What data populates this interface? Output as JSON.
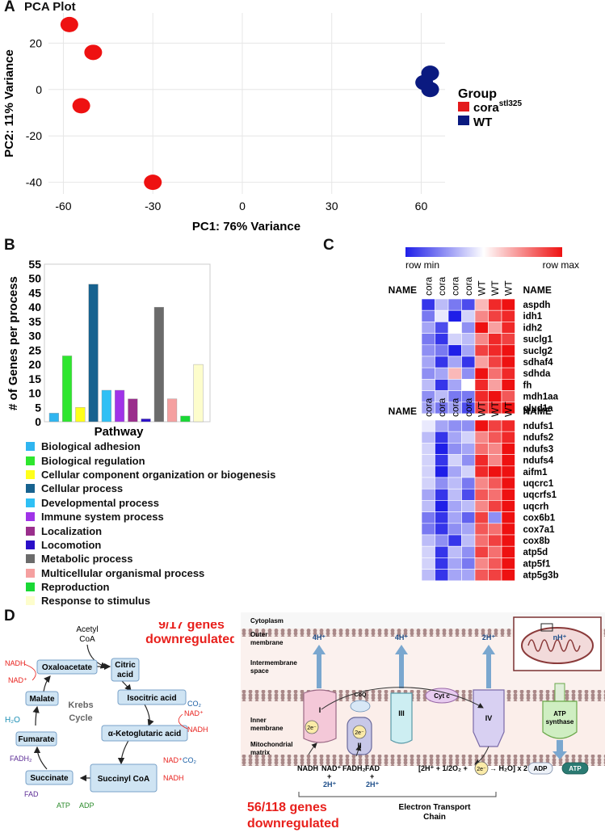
{
  "panels": {
    "a": {
      "label": "A",
      "title": "PCA Plot"
    },
    "b": {
      "label": "B"
    },
    "c": {
      "label": "C"
    },
    "d": {
      "label": "D"
    }
  },
  "chart_data": [
    {
      "type": "scatter",
      "title": "PCA Plot",
      "xlabel": "PC1: 76% Variance",
      "ylabel": "PC2: 11% Variance",
      "xlim": [
        -65,
        68
      ],
      "ylim": [
        -45,
        33
      ],
      "xticks": [
        "-60",
        "-30",
        "0",
        "30",
        "60"
      ],
      "yticks": [
        "20",
        "0",
        "-20",
        "-40"
      ],
      "grid": true,
      "legend": {
        "title": "Group",
        "position": "right",
        "entries": [
          {
            "label": "cora",
            "superscript": "stl325",
            "color": "#e31a1c"
          },
          {
            "label": "WT",
            "color": "#0a1a80"
          }
        ]
      },
      "series": [
        {
          "name": "cora",
          "color": "#ee1111",
          "points": [
            [
              -58,
              28
            ],
            [
              -50,
              16
            ],
            [
              -54,
              -7
            ],
            [
              -30,
              -40
            ]
          ]
        },
        {
          "name": "WT",
          "color": "#0a1a80",
          "points": [
            [
              63,
              7
            ],
            [
              61,
              3
            ],
            [
              63,
              0
            ]
          ]
        }
      ]
    },
    {
      "type": "bar",
      "xlabel": "Pathway",
      "ylabel": "# of Genes per process",
      "ylim": [
        0,
        55
      ],
      "yticks": [
        "0",
        "5",
        "10",
        "15",
        "20",
        "25",
        "30",
        "35",
        "40",
        "45",
        "50",
        "55"
      ],
      "categories": [
        "Biological adhesion",
        "Biological regulation",
        "Cellular component organization or biogenesis",
        "Cellular process",
        "Developmental process",
        "Immune system process",
        "Localization",
        "Locomotion",
        "Metabolic process",
        "Multicellular organismal process",
        "Reproduction",
        "Response to stimulus"
      ],
      "values": [
        3,
        23,
        5,
        48,
        11,
        11,
        8,
        1,
        40,
        8,
        2,
        20
      ],
      "colors": [
        "#2fb5f0",
        "#2ee62e",
        "#ffff1a",
        "#17628f",
        "#2fc0f5",
        "#a033e8",
        "#9a2e8c",
        "#2a0fc8",
        "#6b6b6b",
        "#f5a0a0",
        "#19d835",
        "#fdfdcc"
      ]
    },
    {
      "type": "heatmap",
      "scale": {
        "min_label": "row min",
        "max_label": "row max"
      },
      "blocks": [
        {
          "name_left": "NAME",
          "name_right": "NAME",
          "columns": [
            "cora",
            "cora",
            "cora",
            "cora",
            "WT",
            "WT",
            "WT"
          ],
          "rows": [
            "aspdh",
            "idh1",
            "idh2",
            "suclg1",
            "suclg2",
            "sdhaf4",
            "sdhda",
            "fh",
            "mdh1aa",
            "glud1a"
          ],
          "values": [
            [
              -0.9,
              -0.3,
              -0.6,
              -0.8,
              0.3,
              0.9,
              1.0
            ],
            [
              -0.6,
              -0.1,
              -1.0,
              -0.2,
              0.5,
              0.8,
              0.9
            ],
            [
              -0.4,
              -0.8,
              0.0,
              -0.5,
              1.0,
              0.4,
              0.9
            ],
            [
              -0.6,
              -0.9,
              -0.2,
              -0.3,
              0.5,
              0.9,
              0.8
            ],
            [
              -0.5,
              -0.6,
              -1.0,
              -0.4,
              0.8,
              0.9,
              1.0
            ],
            [
              -0.4,
              -0.9,
              -0.4,
              -0.9,
              0.4,
              0.8,
              1.0
            ],
            [
              -0.5,
              -0.4,
              0.3,
              -0.5,
              1.0,
              0.6,
              0.9
            ],
            [
              -0.3,
              -0.9,
              -0.4,
              0.0,
              0.9,
              0.4,
              1.0
            ],
            [
              -0.5,
              -0.3,
              -0.6,
              -0.6,
              0.9,
              1.0,
              0.7
            ],
            [
              -0.4,
              -0.6,
              -0.4,
              -0.8,
              0.8,
              0.9,
              1.0
            ]
          ]
        },
        {
          "name_left": "NAME",
          "name_right": "NAME",
          "columns": [
            "cora",
            "cora",
            "cora",
            "cora",
            "WT",
            "WT",
            "WT"
          ],
          "rows": [
            "ndufs1",
            "ndufs2",
            "ndufs3",
            "ndufs4",
            "aifm1",
            "uqcrc1",
            "uqcrfs1",
            "uqcrh",
            "cox6b1",
            "cox7a1",
            "cox8b",
            "atp5d",
            "atp5f1",
            "atp5g3b"
          ],
          "values": [
            [
              -0.1,
              -0.4,
              -0.5,
              -0.5,
              1.0,
              0.8,
              0.9
            ],
            [
              -0.3,
              -0.9,
              -0.4,
              -0.2,
              0.5,
              0.7,
              0.9
            ],
            [
              -0.2,
              -1.0,
              -0.5,
              -0.4,
              0.6,
              0.5,
              1.0
            ],
            [
              -0.2,
              -0.9,
              -0.2,
              -0.5,
              0.9,
              0.5,
              1.0
            ],
            [
              -0.2,
              -1.0,
              -0.4,
              -0.2,
              0.9,
              1.0,
              1.0
            ],
            [
              -0.2,
              -0.5,
              -0.3,
              -0.6,
              0.5,
              0.7,
              1.0
            ],
            [
              -0.4,
              -0.9,
              -0.3,
              -0.8,
              0.7,
              0.6,
              1.0
            ],
            [
              -0.3,
              -1.0,
              -0.4,
              -0.3,
              0.5,
              0.8,
              1.0
            ],
            [
              -0.6,
              -0.9,
              -0.4,
              -0.7,
              0.8,
              -0.5,
              1.0
            ],
            [
              -0.6,
              -0.9,
              -0.5,
              -0.4,
              0.7,
              0.6,
              1.0
            ],
            [
              -0.3,
              -0.5,
              -0.9,
              -0.3,
              0.6,
              0.8,
              1.0
            ],
            [
              -0.2,
              -0.9,
              -0.3,
              -0.5,
              0.8,
              0.6,
              1.0
            ],
            [
              -0.2,
              -0.9,
              -0.4,
              -0.6,
              0.5,
              0.7,
              1.0
            ],
            [
              -0.3,
              -0.9,
              -0.4,
              -0.4,
              0.7,
              0.8,
              1.0
            ]
          ]
        }
      ]
    }
  ],
  "krebs": {
    "summary": "9/17 genes downregulated",
    "summary_line1": "9/17 genes",
    "summary_line2": "downregulated",
    "cycle_label_1": "Krebs",
    "cycle_label_2": "Cycle",
    "nodes": {
      "acetyl": "Acetyl CoA",
      "acetyl_1": "Acetyl",
      "acetyl_2": "CoA",
      "oxaloacetate": "Oxaloacetate",
      "citric": "Citric acid",
      "citric_1": "Citric",
      "citric_2": "acid",
      "malate": "Malate",
      "isocitric": "Isocitric acid",
      "fumarate": "Fumarate",
      "akg": "α-Ketoglutaric acid",
      "succinate": "Succinate",
      "succinyl": "Succinyl CoA"
    },
    "cofactors": {
      "nadh1": "NADH",
      "nad1": "NAD⁺",
      "h2o": "H₂O",
      "fadh2": "FADH₂",
      "fad": "FAD",
      "atp": "ATP",
      "adp": "ADP",
      "co2_1": "CO₂",
      "nad2": "NAD⁺",
      "nadh2": "NADH",
      "nad3": "NAD⁺",
      "co2_2": "CO₂",
      "nadh3": "NADH"
    }
  },
  "etc": {
    "summary_line1": "56/118 genes",
    "summary_line2": "downregulated",
    "chain_label_1": "Electron Transport",
    "chain_label_2": "Chain",
    "regions": {
      "cytoplasm": "Cytoplasm",
      "outer_1": "Outer",
      "outer_2": "membrane",
      "ims_1": "Intermembrane",
      "ims_2": "space",
      "inner_1": "Inner",
      "inner_2": "membrane",
      "matrix_1": "Mitochondrial",
      "matrix_2": "matrix"
    },
    "complexes": {
      "c1": "I",
      "c2": "II",
      "c3": "III",
      "c4": "IV",
      "coq": "CoQ",
      "cytc": "Cyt c",
      "atp_1": "ATP",
      "atp_2": "synthase"
    },
    "protons": {
      "p1": "4H⁺",
      "p3": "4H⁺",
      "p4": "2H⁺",
      "pn": "nH⁺"
    },
    "electrons": "2e⁻",
    "matrix_labels": {
      "nadh": "NADH",
      "nad": "NAD⁺",
      "plus1": "+",
      "h1": "2H⁺",
      "fadh2": "FADH₂",
      "fad": "FAD",
      "plus2": "+",
      "h2": "2H⁺",
      "reaction": "[2H⁺ + 1/2O₂ +",
      "product": "→ H₂O] x 2",
      "adp": "ADP",
      "atp": "ATP"
    }
  }
}
